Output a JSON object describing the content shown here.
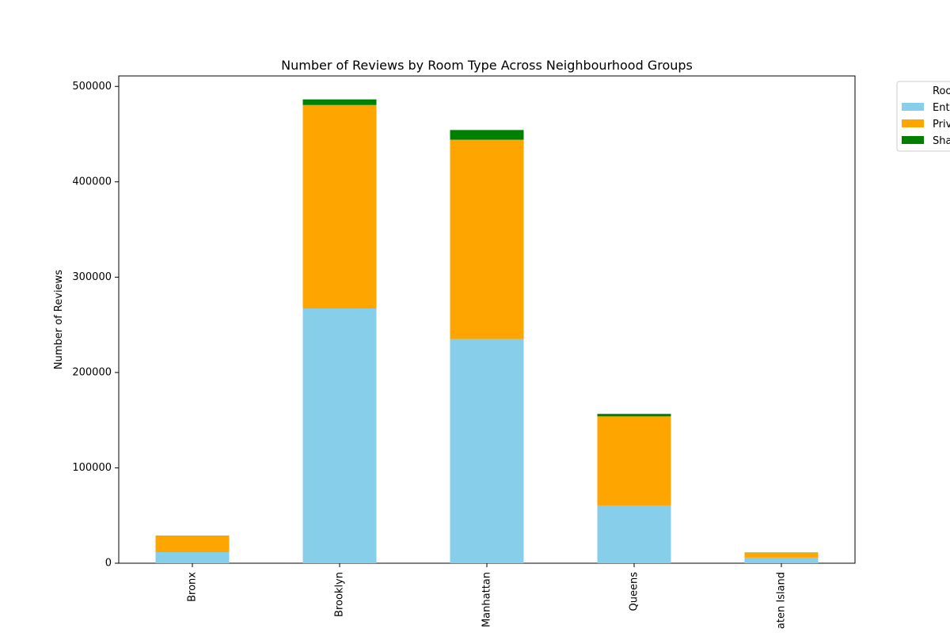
{
  "chart_data": {
    "type": "bar",
    "stacked": true,
    "title": "Number of Reviews by Room Type Across Neighbourhood Groups",
    "xlabel": "",
    "ylabel": "Number of Reviews",
    "categories": [
      "Bronx",
      "Brooklyn",
      "Manhattan",
      "Queens",
      "Staten Island"
    ],
    "visible_category_labels": [
      "Bronx",
      "Brooklyn",
      "Manhattan",
      "Queens",
      "aten Island"
    ],
    "ylim": [
      0,
      511000
    ],
    "yticks": [
      0,
      100000,
      200000,
      300000,
      400000,
      500000
    ],
    "ytick_labels": [
      "0",
      "100000",
      "200000",
      "300000",
      "400000",
      "500000"
    ],
    "grid": false,
    "legend": {
      "placement": "outside-top-right",
      "title": "Roo",
      "entry_labels": [
        "Ent",
        "Priv",
        "Sha"
      ]
    },
    "series": [
      {
        "color": "#87ceeb",
        "values": [
          11600,
          267100,
          235100,
          60600,
          5900
        ]
      },
      {
        "color": "#ffa500",
        "values": [
          16900,
          213400,
          209000,
          93400,
          5200
        ]
      },
      {
        "color": "#008000",
        "values": [
          300,
          5900,
          10200,
          2600,
          200
        ]
      }
    ]
  }
}
